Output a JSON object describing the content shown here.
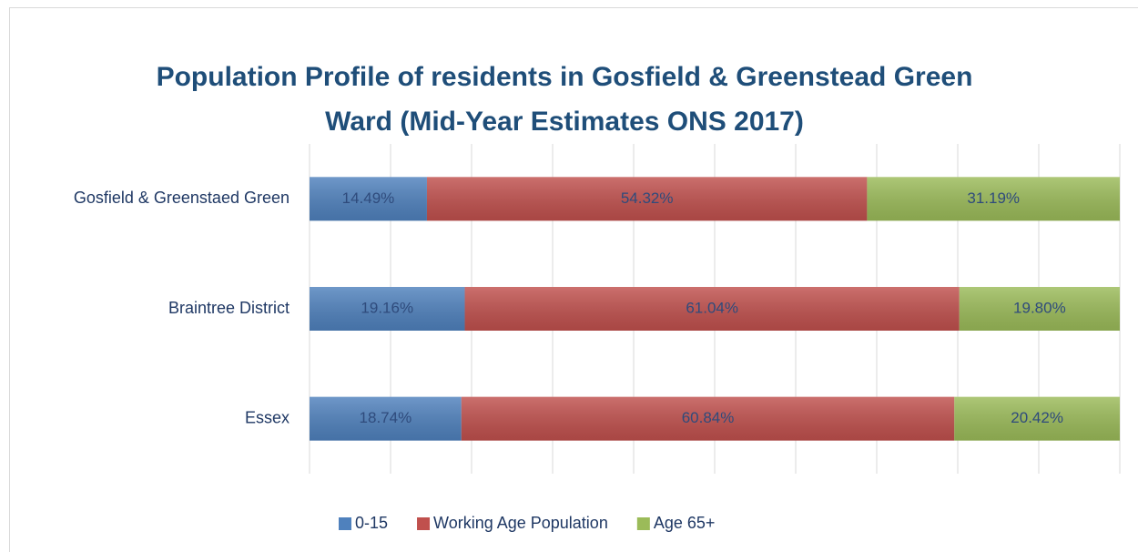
{
  "chart_data": {
    "type": "stacked_barh",
    "title": "Population Profile of residents in Gosfield & Greenstead Green",
    "subtitle": "Ward (Mid-Year Estimates ONS 2017)",
    "categories": [
      "Gosfield & Greenstaed Green",
      "Braintree District",
      "Essex"
    ],
    "series": [
      {
        "name": "0-15",
        "color": "#4f81bd",
        "values": [
          14.49,
          19.16,
          18.74
        ],
        "value_labels": [
          "14.49%",
          "19.16%",
          "18.74%"
        ]
      },
      {
        "name": "Working Age Population",
        "color": "#c0504d",
        "values": [
          54.32,
          61.04,
          60.84
        ],
        "value_labels": [
          "54.32%",
          "61.04%",
          "60.84%"
        ]
      },
      {
        "name": "Age 65+",
        "color": "#9bbb59",
        "values": [
          31.19,
          19.8,
          20.42
        ],
        "value_labels": [
          "31.19%",
          "19.80%",
          "20.42%"
        ]
      }
    ],
    "xlim": [
      0,
      100
    ],
    "xticks": [
      0,
      10,
      20,
      30,
      40,
      50,
      60,
      70,
      80,
      90,
      100
    ],
    "grid": true,
    "legend": "bottom"
  }
}
